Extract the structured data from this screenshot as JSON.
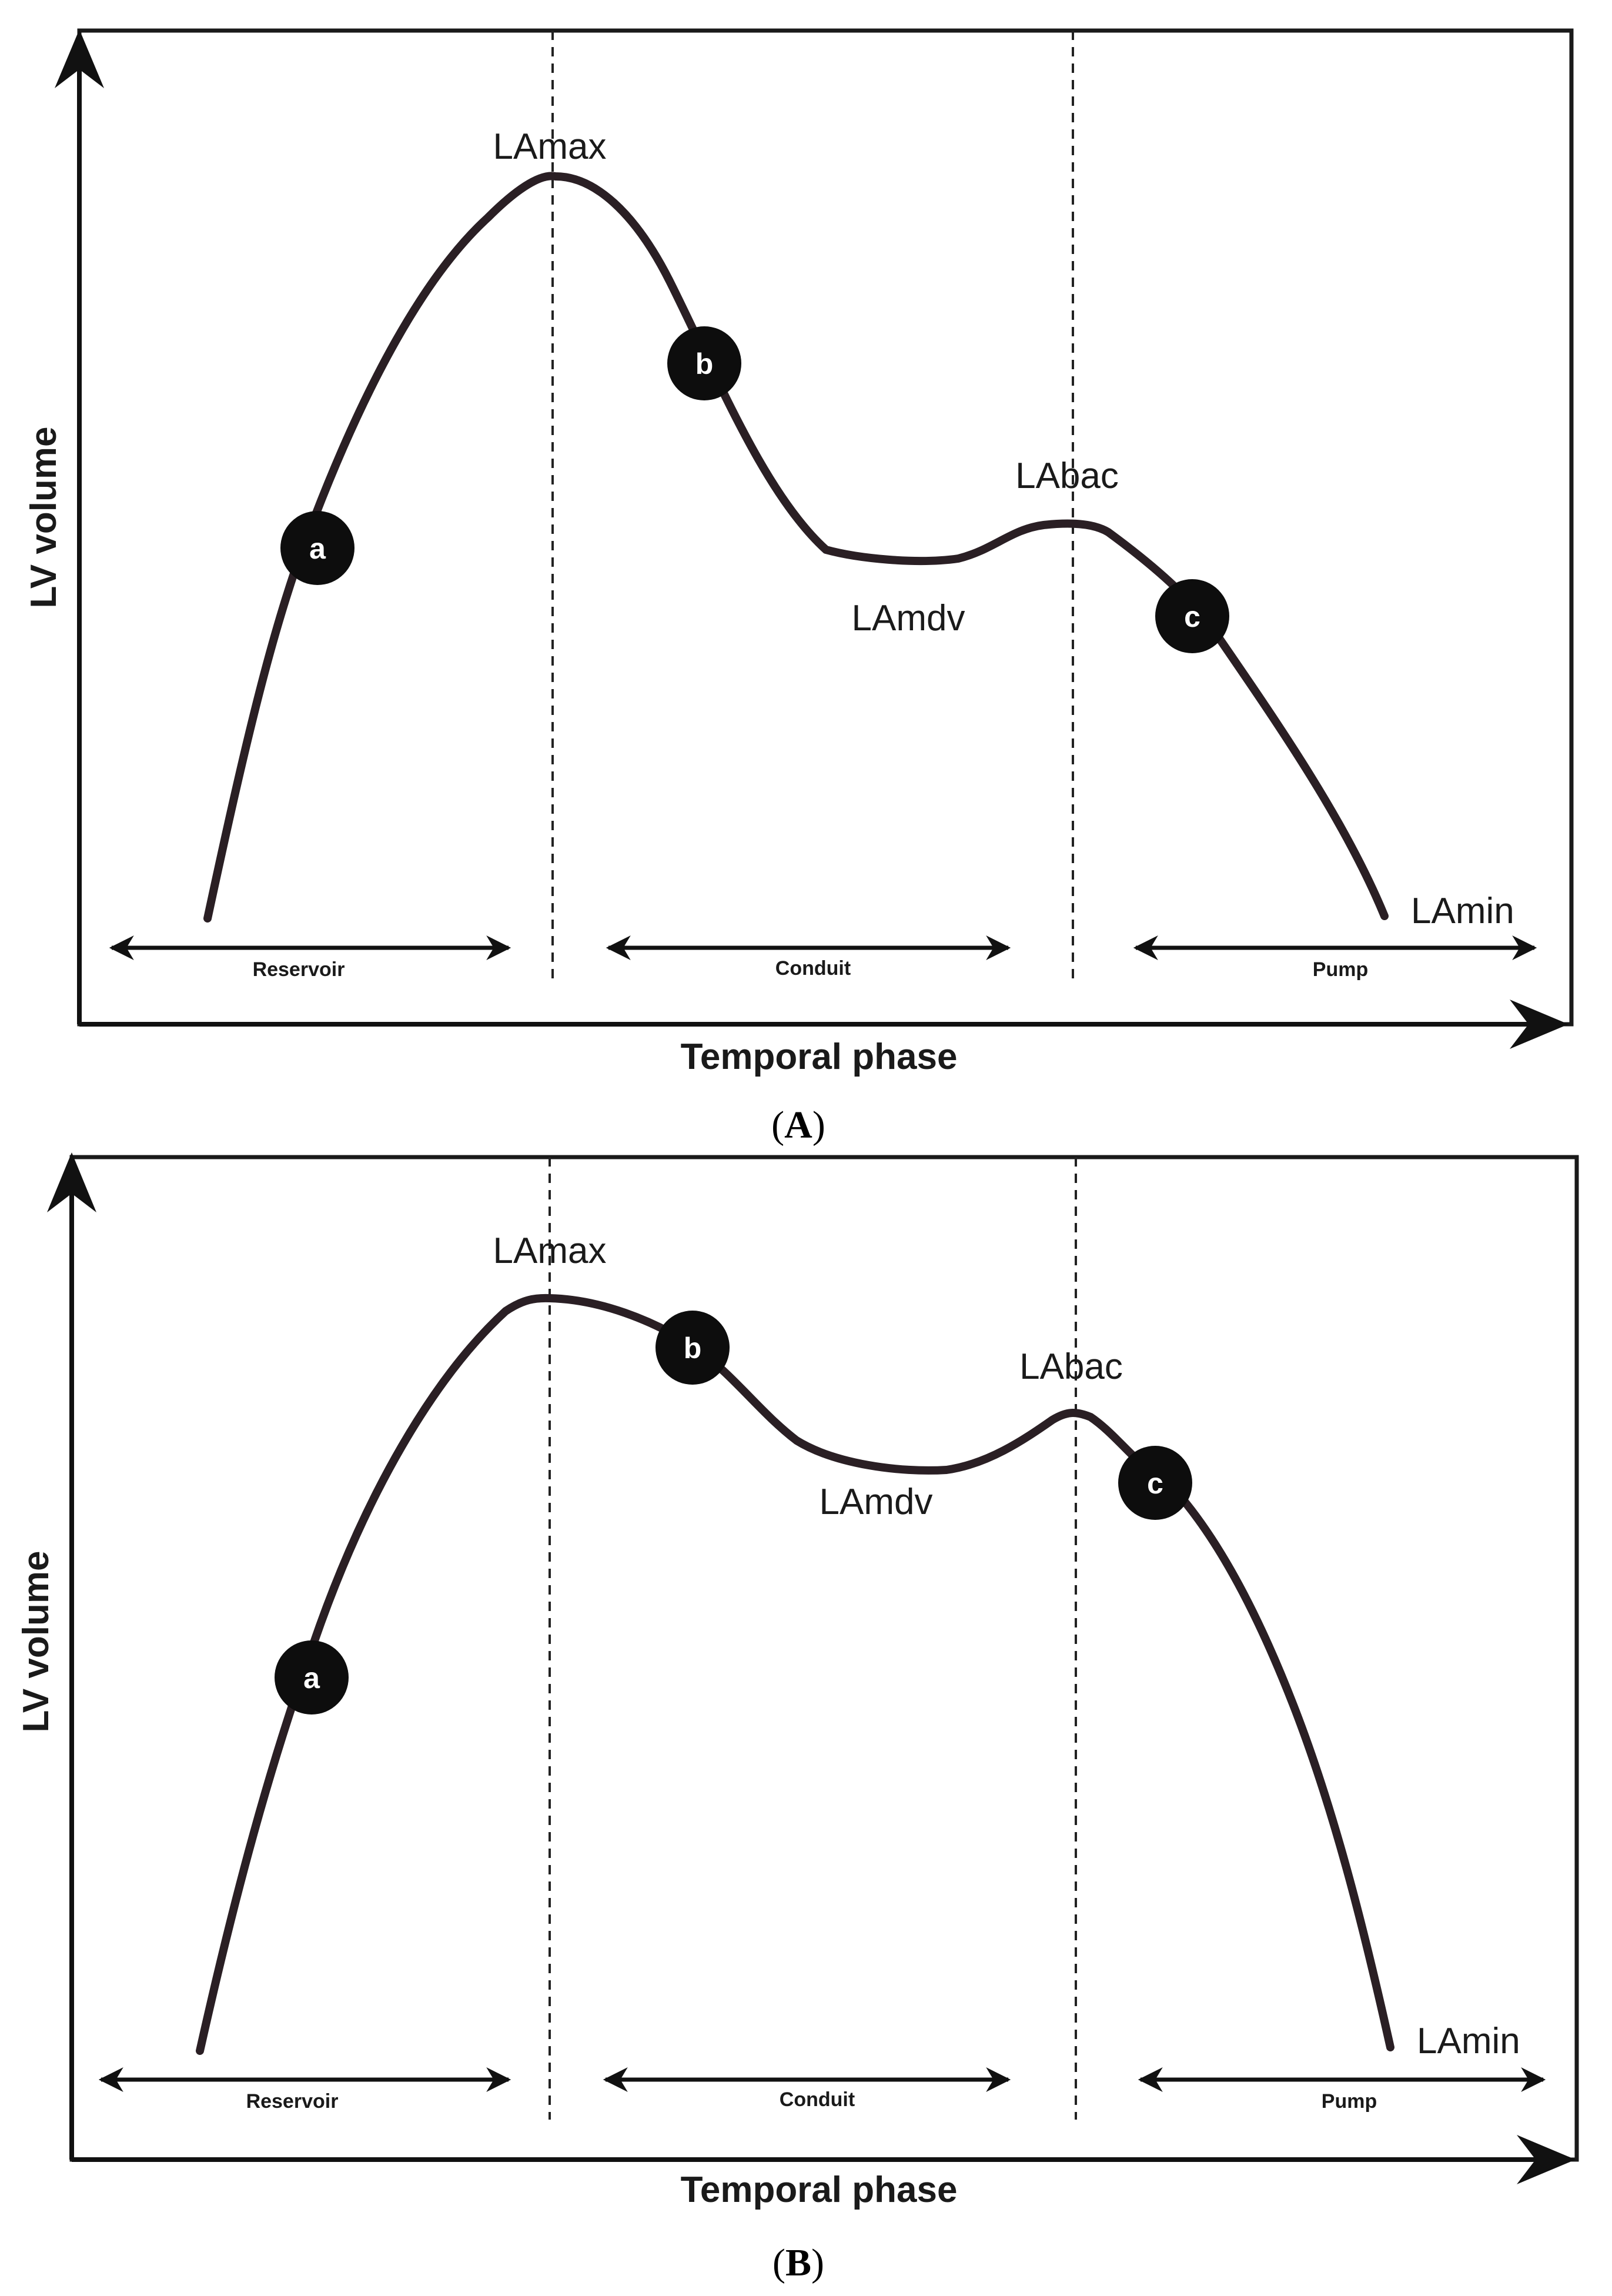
{
  "panels": [
    {
      "id": "A",
      "caption_open": "(",
      "caption_letter": "A",
      "caption_close": ")",
      "y_axis_label": "LV volume",
      "x_axis_label": "Temporal phase",
      "point_labels": {
        "max": "LAmax",
        "mdv": "LAmdv",
        "bac": "LAbac",
        "min": "LAmin"
      },
      "markers": [
        "a",
        "b",
        "c"
      ],
      "phases": [
        "Reservoir",
        "Conduit",
        "Pump"
      ]
    },
    {
      "id": "B",
      "caption_open": "(",
      "caption_letter": "B",
      "caption_close": ")",
      "y_axis_label": "LV volume",
      "x_axis_label": "Temporal phase",
      "point_labels": {
        "max": "LAmax",
        "mdv": "LAmdv",
        "bac": "LAbac",
        "min": "LAmin"
      },
      "markers": [
        "a",
        "b",
        "c"
      ],
      "phases": [
        "Reservoir",
        "Conduit",
        "Pump"
      ]
    }
  ],
  "colors": {
    "curve": "#2a1f24",
    "marker_fill": "#0d0d0d",
    "marker_text": "#ffffff",
    "ink": "#111111"
  }
}
